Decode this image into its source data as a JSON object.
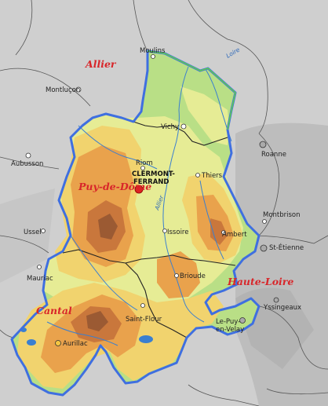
{
  "departments": {
    "allier": "Allier",
    "puy_de_dome": "Puy-de-Dôme",
    "cantal": "Cantal",
    "haute_loire": "Haute-Loire"
  },
  "cities": {
    "moulins": "Moulins",
    "montlucon": "Montluçon",
    "vichy": "Vichy",
    "roanne": "Roanne",
    "aubusson": "Aubusson",
    "riom": "Riom",
    "clermont_1": "CLERMONT-",
    "clermont_2": "FERRAND",
    "thiers": "Thiers",
    "montbrison": "Montbrison",
    "ussel": "Ussel",
    "issoire": "Issoire",
    "ambert": "Ambert",
    "saint_etienne": "St-Étienne",
    "brioude": "Brioude",
    "mauriac": "Mauriac",
    "yssingeaux": "Yssingeaux",
    "saint_flour": "Saint-Flour",
    "le_puy_1": "Le-Puy-",
    "le_puy_2": "en-Velay",
    "aurillac": "Aurillac"
  },
  "rivers": {
    "allier": "Allier",
    "loire": "Loire"
  },
  "colors": {
    "region_border": "#3f6fe0",
    "dept_label": "#d8262a",
    "lowland": "#b9df86",
    "plain": "#e6ec95",
    "low_hills": "#f1d36e",
    "hills": "#e9a24c",
    "mountains": "#c9773c",
    "peaks": "#9b5a33",
    "outside": "#cfcfcf",
    "water": "#3a7fd0"
  }
}
